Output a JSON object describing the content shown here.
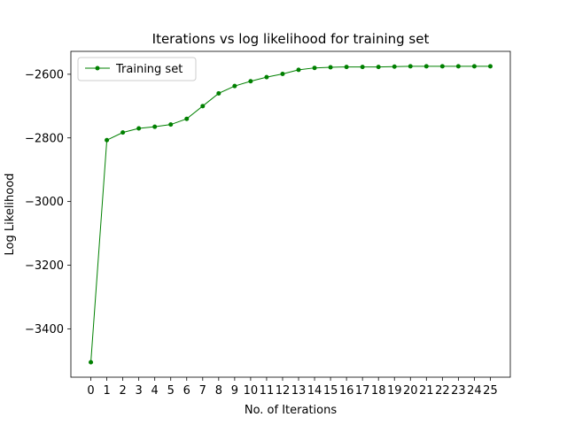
{
  "chart_data": {
    "type": "line",
    "title": "Iterations vs log likelihood for training set",
    "xlabel": "No. of Iterations",
    "ylabel": "Log Likelihood",
    "x": [
      0,
      1,
      2,
      3,
      4,
      5,
      6,
      7,
      8,
      9,
      10,
      11,
      12,
      13,
      14,
      15,
      16,
      17,
      18,
      19,
      20,
      21,
      22,
      23,
      24,
      25
    ],
    "series": [
      {
        "name": "Training set",
        "color": "#008000",
        "values": [
          -3505,
          -2807,
          -2783,
          -2770,
          -2765,
          -2758,
          -2740,
          -2700,
          -2660,
          -2637,
          -2622,
          -2609,
          -2599,
          -2586,
          -2580,
          -2578,
          -2577,
          -2577,
          -2577,
          -2576,
          -2575,
          -2575,
          -2575,
          -2575,
          -2575,
          -2575
        ]
      }
    ],
    "xticks": [
      "0",
      "1",
      "2",
      "3",
      "4",
      "5",
      "6",
      "7",
      "8",
      "9",
      "10",
      "11",
      "12",
      "13",
      "14",
      "15",
      "16",
      "17",
      "18",
      "19",
      "20",
      "21",
      "22",
      "23",
      "24",
      "25"
    ],
    "yticks": [
      -3400,
      -3200,
      -3000,
      -2800,
      -2600
    ],
    "ytick_labels": [
      "−3400",
      "−3200",
      "−3000",
      "−2800",
      "−2600"
    ],
    "xlim": [
      -1.25,
      26.25
    ],
    "ylim": [
      -3552,
      -2528
    ],
    "grid": false,
    "legend_position": "upper-left"
  }
}
